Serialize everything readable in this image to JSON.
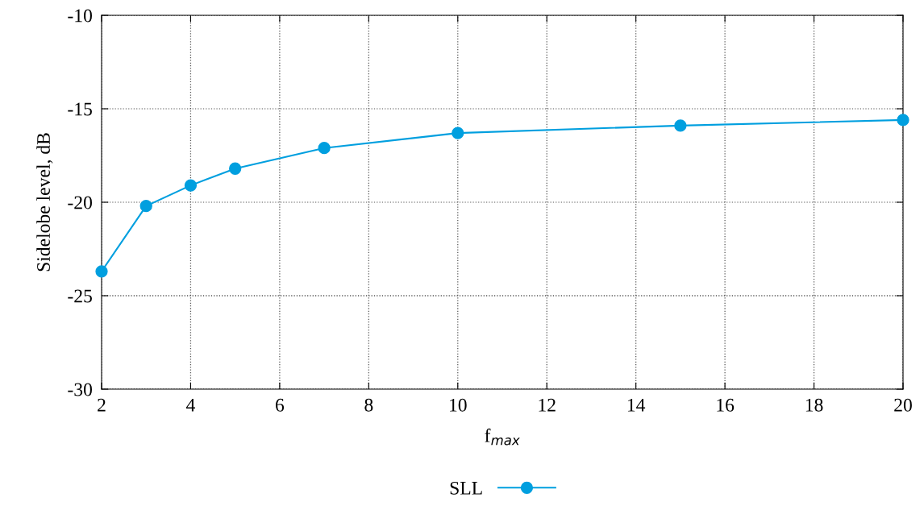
{
  "chart_data": {
    "type": "line",
    "xlabel": "f$_{max}$",
    "ylabel": "Sidelobe level, dB",
    "x": [
      2,
      3,
      4,
      5,
      7,
      10,
      15,
      20
    ],
    "series": [
      {
        "name": "SLL",
        "color": "#009fdf",
        "values": [
          -23.7,
          -20.2,
          -19.1,
          -18.2,
          -17.1,
          -16.3,
          -15.9,
          -15.6
        ]
      }
    ],
    "xlim": [
      2,
      20
    ],
    "xticks": [
      2,
      4,
      6,
      8,
      10,
      12,
      14,
      16,
      18,
      20
    ],
    "ylim": [
      -30,
      -10
    ],
    "yticks": [
      -30,
      -25,
      -20,
      -15,
      -10
    ],
    "grid": true,
    "legend": "bottom",
    "marker": "circle",
    "line_style": "solid"
  }
}
